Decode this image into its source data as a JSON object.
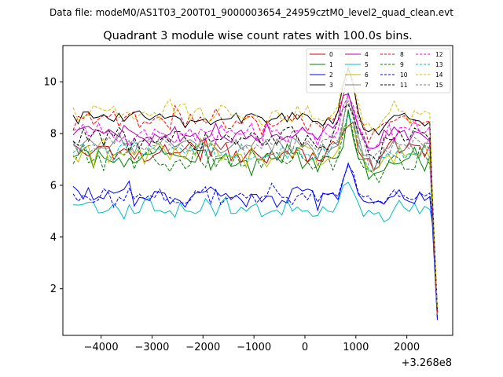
{
  "header": {
    "data_file": "Data file: modeM0/AS1T03_200T01_9000003654_24959cztM0_level2_quad_clean.evt"
  },
  "chart_data": {
    "type": "line",
    "title": "Quadrant 3 module wise count rates with 100.0s bins.",
    "xlabel": "",
    "ylabel": "",
    "x_offset_label": "+3.268e8",
    "xlim": [
      -4750,
      2900
    ],
    "ylim": [
      0.2,
      11.4
    ],
    "x_ticks": [
      -4000,
      -3000,
      -2000,
      -1000,
      0,
      1000,
      2000
    ],
    "x_tick_labels": [
      "−4000",
      "−3000",
      "−2000",
      "−1000",
      "0",
      "1000",
      "2000"
    ],
    "y_ticks": [
      2,
      4,
      6,
      8,
      10
    ],
    "y_tick_labels": [
      "2",
      "4",
      "6",
      "8",
      "10"
    ],
    "legend_location": "top-right",
    "x_start": -4550,
    "x_step": 100,
    "drop_x": [
      2500,
      2600
    ],
    "series": [
      {
        "name": "0",
        "color": "#d00000",
        "dash": "solid",
        "level": 7.3,
        "amp": 0.35,
        "drop": [
          5.2,
          1.0
        ]
      },
      {
        "name": "1",
        "color": "#008000",
        "dash": "solid",
        "level": 7.0,
        "amp": 0.4,
        "drop": [
          5.0,
          1.0
        ]
      },
      {
        "name": "2",
        "color": "#0000ff",
        "dash": "solid",
        "level": 5.6,
        "amp": 0.4,
        "drop": [
          4.5,
          0.8
        ]
      },
      {
        "name": "3",
        "color": "#000000",
        "dash": "solid",
        "level": 8.6,
        "amp": 0.3,
        "drop": [
          5.6,
          1.2
        ]
      },
      {
        "name": "4",
        "color": "#b000b0",
        "dash": "solid",
        "level": 8.0,
        "amp": 0.35,
        "drop": [
          5.4,
          1.1
        ]
      },
      {
        "name": "5",
        "color": "#00bfbf",
        "dash": "solid",
        "level": 5.1,
        "amp": 0.3,
        "drop": [
          4.6,
          0.8
        ]
      },
      {
        "name": "6",
        "color": "#bfbf00",
        "dash": "solid",
        "level": 7.2,
        "amp": 0.4,
        "drop": [
          5.0,
          1.0
        ]
      },
      {
        "name": "7",
        "color": "#808080",
        "dash": "solid",
        "level": 7.5,
        "amp": 0.35,
        "drop": [
          5.2,
          1.0
        ]
      },
      {
        "name": "8",
        "color": "#ff0000",
        "dash": "dashed",
        "level": 8.5,
        "amp": 0.35,
        "drop": [
          5.6,
          1.1
        ]
      },
      {
        "name": "9",
        "color": "#008000",
        "dash": "dashed",
        "level": 7.0,
        "amp": 0.4,
        "drop": [
          5.0,
          1.0
        ]
      },
      {
        "name": "10",
        "color": "#0000ff",
        "dash": "dashed",
        "level": 5.6,
        "amp": 0.3,
        "drop": [
          4.8,
          0.8
        ]
      },
      {
        "name": "11",
        "color": "#000000",
        "dash": "dashed",
        "level": 7.8,
        "amp": 0.35,
        "drop": [
          5.3,
          1.1
        ]
      },
      {
        "name": "12",
        "color": "#ff00ff",
        "dash": "dashed",
        "level": 8.0,
        "amp": 0.35,
        "drop": [
          5.4,
          1.1
        ]
      },
      {
        "name": "13",
        "color": "#00bfbf",
        "dash": "dashed",
        "level": 7.3,
        "amp": 0.35,
        "drop": [
          5.0,
          1.0
        ]
      },
      {
        "name": "14",
        "color": "#d4c000",
        "dash": "dashed",
        "level": 8.8,
        "amp": 0.4,
        "drop": [
          5.8,
          1.2
        ]
      },
      {
        "name": "15",
        "color": "#808080",
        "dash": "dashed",
        "level": 7.6,
        "amp": 0.35,
        "drop": [
          5.2,
          1.0
        ]
      }
    ]
  }
}
